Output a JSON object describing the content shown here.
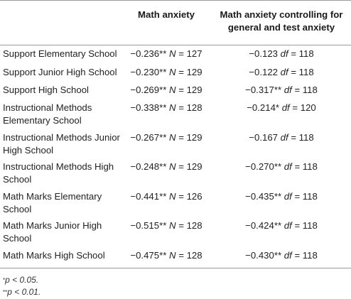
{
  "header": {
    "col1": "Math anxiety",
    "col2": "Math anxiety controlling for general and test anxiety"
  },
  "rows": [
    {
      "label": "Support Elementary School",
      "v1": "−0.236** ",
      "v1_stat": "N",
      "v1_n": " = 127",
      "v2": "−0.123 ",
      "v2_stat": "df",
      "v2_n": " = 118"
    },
    {
      "label": "Support Junior High School",
      "v1": "−0.230** ",
      "v1_stat": "N",
      "v1_n": " = 129",
      "v2": "−0.122 ",
      "v2_stat": "df",
      "v2_n": " = 118"
    },
    {
      "label": "Support High School",
      "v1": "−0.269** ",
      "v1_stat": "N",
      "v1_n": " = 129",
      "v2": "−0.317** ",
      "v2_stat": "df",
      "v2_n": " = 118"
    },
    {
      "label": "Instructional Methods Elementary School",
      "v1": "−0.338** ",
      "v1_stat": "N",
      "v1_n": " = 128",
      "v2": "−0.214* ",
      "v2_stat": "df",
      "v2_n": " = 120"
    },
    {
      "label": "Instructional Methods Junior High School",
      "v1": "−0.267** ",
      "v1_stat": "N",
      "v1_n": " = 129",
      "v2": "−0.167 ",
      "v2_stat": "df",
      "v2_n": " = 118"
    },
    {
      "label": "Instructional Methods High School",
      "v1": "−0.248** ",
      "v1_stat": "N",
      "v1_n": " = 129",
      "v2": "−0.270** ",
      "v2_stat": "df",
      "v2_n": " = 118"
    },
    {
      "label": "Math Marks Elementary School",
      "v1": "−0.441** ",
      "v1_stat": "N",
      "v1_n": " = 126",
      "v2": "−0.435** ",
      "v2_stat": "df",
      "v2_n": " = 118"
    },
    {
      "label": "Math Marks Junior High School",
      "v1": "−0.515** ",
      "v1_stat": "N",
      "v1_n": " = 128",
      "v2": "−0.424** ",
      "v2_stat": "df",
      "v2_n": " = 118"
    },
    {
      "label": "Math Marks High School",
      "v1": "−0.475** ",
      "v1_stat": "N",
      "v1_n": " = 128",
      "v2": "−0.430** ",
      "v2_stat": "df",
      "v2_n": " = 118"
    }
  ],
  "notes": {
    "n1_mark": "*",
    "n1_text": "p < 0.05.",
    "n2_mark": "**",
    "n2_text": "p < 0.01."
  }
}
